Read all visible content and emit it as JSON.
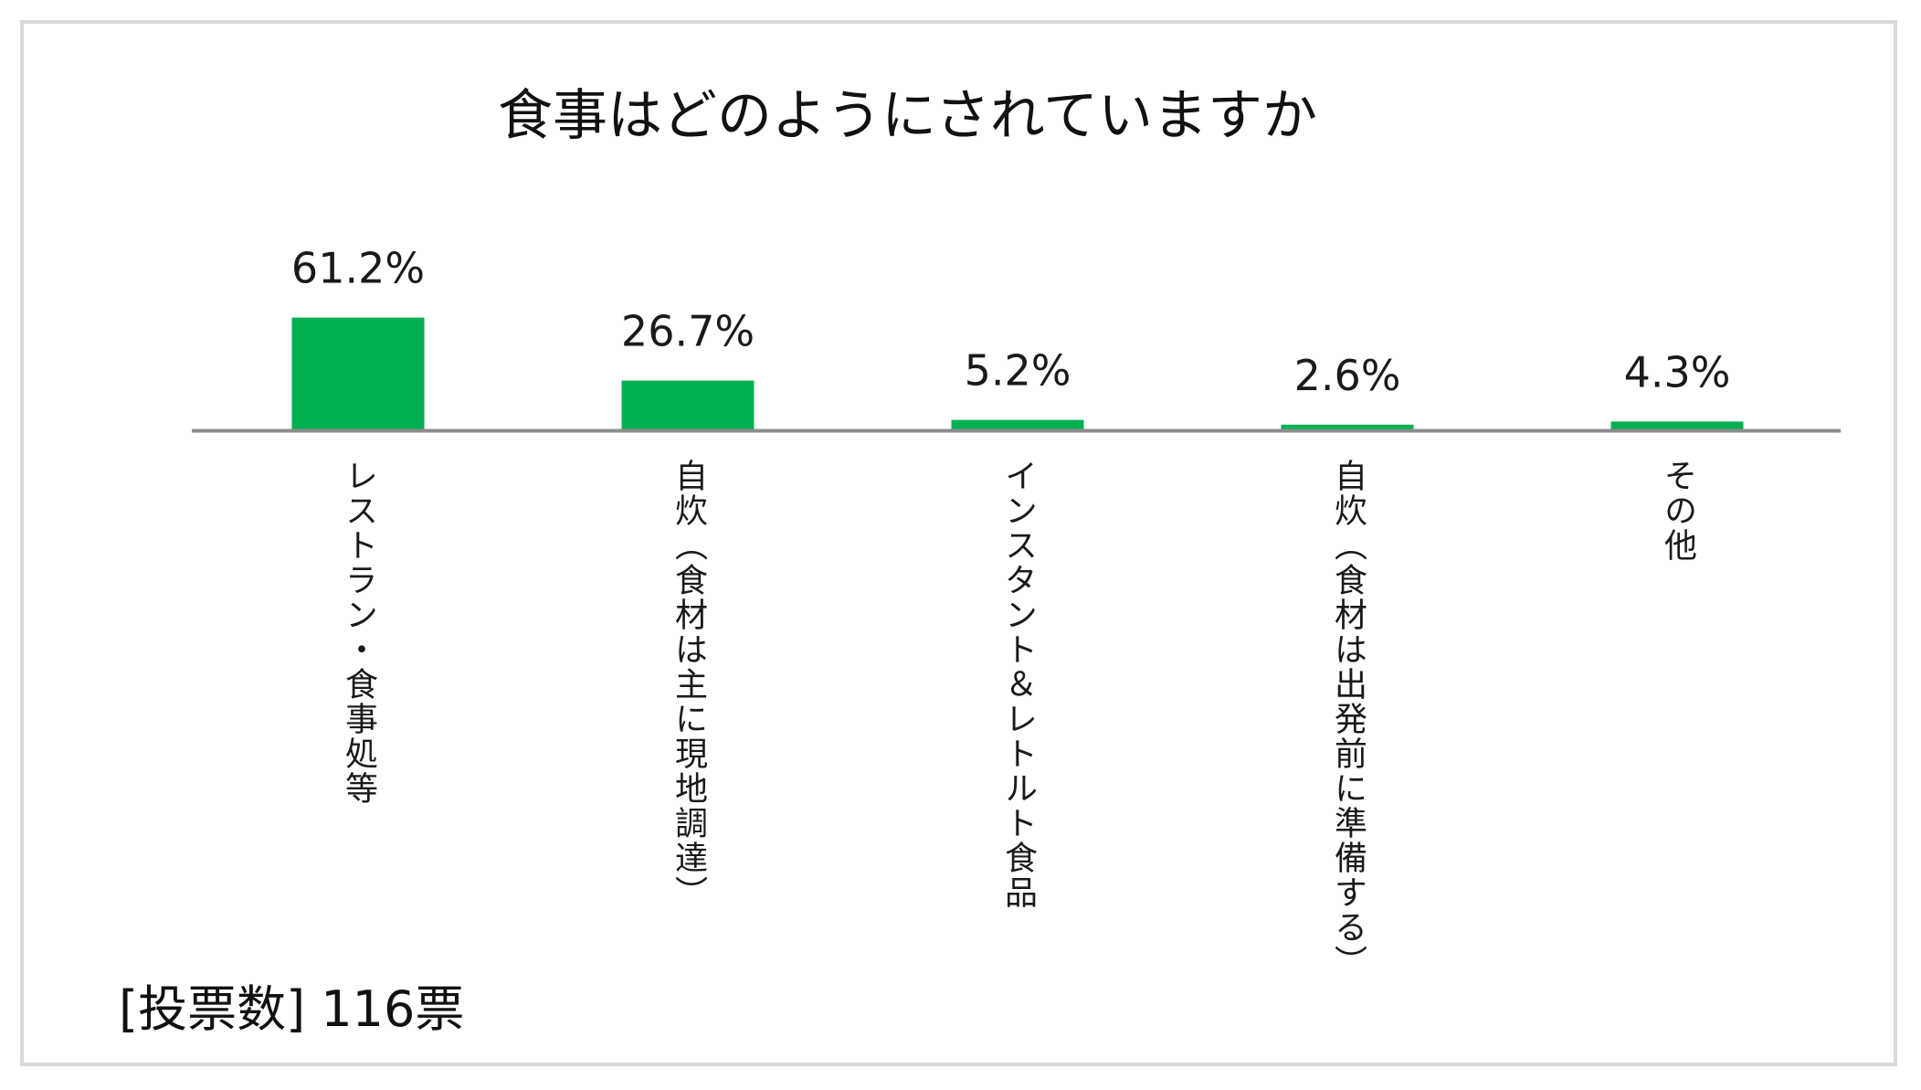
{
  "chart_data": {
    "type": "bar",
    "title": "食事はどのようにされていますか",
    "categories": [
      "レストラン・食事処等",
      "自炊（食材は主に現地調達）",
      "インスタント＆レトルト食品",
      "自炊（食材は出発前に準備する）",
      "その他"
    ],
    "values": [
      61.2,
      26.7,
      5.2,
      2.6,
      4.3
    ],
    "value_labels": [
      "61.2%",
      "26.7%",
      "5.2%",
      "2.6%",
      "4.3%"
    ],
    "unit": "%",
    "ylim": [
      0,
      100
    ],
    "grid": false,
    "bar_color": "#00b050",
    "axis_color": "#8c8c8c",
    "xlabel": "",
    "ylabel": ""
  },
  "footer": {
    "vote_count": "[投票数] 116票"
  }
}
